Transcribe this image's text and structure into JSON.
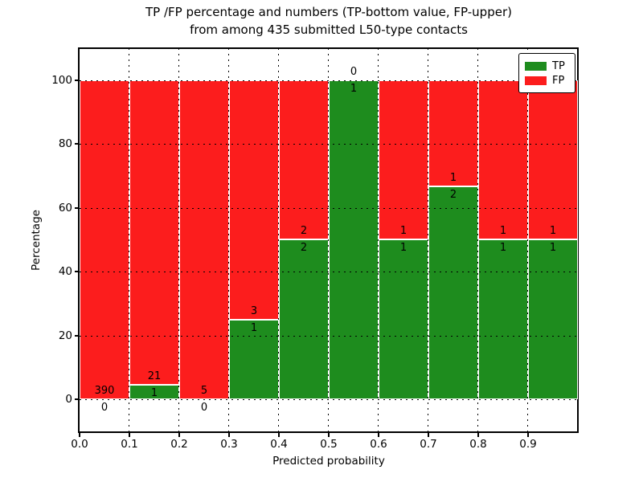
{
  "figure": {
    "title_line1": "TP /FP percentage and numbers (TP-bottom value, FP-upper)",
    "title_line2": "from among 435 submitted L50-type contacts",
    "xlabel": "Predicted probability",
    "ylabel": "Percentage"
  },
  "legend": {
    "position": "upper right",
    "tp_label": "TP",
    "fp_label": "FP"
  },
  "chart_data": {
    "type": "bar",
    "subtype": "stacked-percentage-histogram",
    "title": "TP /FP percentage and numbers (TP-bottom value, FP-upper) from among 435 submitted L50-type contacts",
    "xlabel": "Predicted probability",
    "ylabel": "Percentage",
    "total_submitted_contacts": 435,
    "xlim": [
      0.0,
      1.0
    ],
    "y_ticks": [
      0,
      20,
      40,
      60,
      80,
      100
    ],
    "y_tick_labels": [
      "0",
      "20",
      "40",
      "60",
      "80",
      "100"
    ],
    "x_ticks": [
      0.0,
      0.1,
      0.2,
      0.3,
      0.4,
      0.5,
      0.6,
      0.7,
      0.8,
      0.9
    ],
    "x_tick_labels": [
      "0.0",
      "0.1",
      "0.2",
      "0.3",
      "0.4",
      "0.5",
      "0.6",
      "0.7",
      "0.8",
      "0.9"
    ],
    "grid": "dotted both axes",
    "legend_entries": [
      {
        "label": "TP",
        "color": "#1e8c1e"
      },
      {
        "label": "FP",
        "color": "#fc1d1d"
      }
    ],
    "colors": {
      "tp": "#1e8c1e",
      "fp": "#fc1d1d"
    },
    "bins": [
      {
        "x_start": 0.0,
        "x_end": 0.1,
        "tp": 0,
        "fp": 390,
        "tp_pct": 0.0
      },
      {
        "x_start": 0.1,
        "x_end": 0.2,
        "tp": 1,
        "fp": 21,
        "tp_pct": 4.545
      },
      {
        "x_start": 0.2,
        "x_end": 0.3,
        "tp": 0,
        "fp": 5,
        "tp_pct": 0.0
      },
      {
        "x_start": 0.3,
        "x_end": 0.4,
        "tp": 1,
        "fp": 3,
        "tp_pct": 25.0
      },
      {
        "x_start": 0.4,
        "x_end": 0.5,
        "tp": 2,
        "fp": 2,
        "tp_pct": 50.0
      },
      {
        "x_start": 0.5,
        "x_end": 0.6,
        "tp": 1,
        "fp": 0,
        "tp_pct": 100.0
      },
      {
        "x_start": 0.6,
        "x_end": 0.7,
        "tp": 1,
        "fp": 1,
        "tp_pct": 50.0
      },
      {
        "x_start": 0.7,
        "x_end": 0.8,
        "tp": 2,
        "fp": 1,
        "tp_pct": 66.667
      },
      {
        "x_start": 0.8,
        "x_end": 0.9,
        "tp": 1,
        "fp": 1,
        "tp_pct": 50.0
      },
      {
        "x_start": 0.9,
        "x_end": 1.0,
        "tp": 1,
        "fp": 1,
        "tp_pct": 50.0
      }
    ]
  }
}
